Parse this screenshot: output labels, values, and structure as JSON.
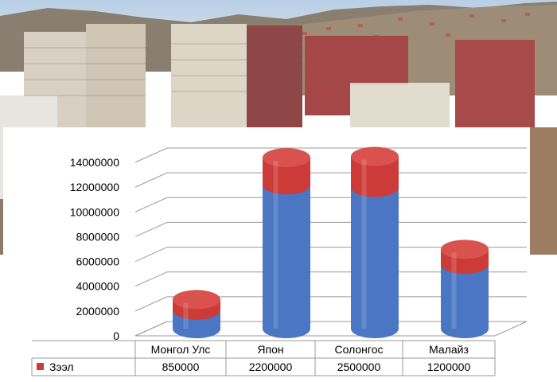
{
  "chart_data": {
    "type": "bar",
    "title": "",
    "xlabel": "",
    "ylabel": "",
    "categories": [
      "Монгол Улс",
      "Япон",
      "Солонгос",
      "Малайз"
    ],
    "series": [
      {
        "name": "",
        "values": [
          1500000,
          11600000,
          11400000,
          5200000
        ],
        "color": "#4a76c4"
      },
      {
        "name": "Зээл",
        "values": [
          850000,
          2200000,
          2500000,
          1200000
        ],
        "color": "#cc3b37"
      }
    ],
    "y_ticks": [
      "0",
      "2000000",
      "4000000",
      "6000000",
      "8000000",
      "10000000",
      "12000000",
      "14000000"
    ],
    "ylim": [
      0,
      14000000
    ],
    "style": "3d-cylinder-stacked",
    "grid": true,
    "data_table": true
  },
  "colors": {
    "sky": "#a9c3dc",
    "hills": "#8c7f70",
    "building_brick": "#8e3c3c",
    "building_light": "#d9d2c4"
  }
}
